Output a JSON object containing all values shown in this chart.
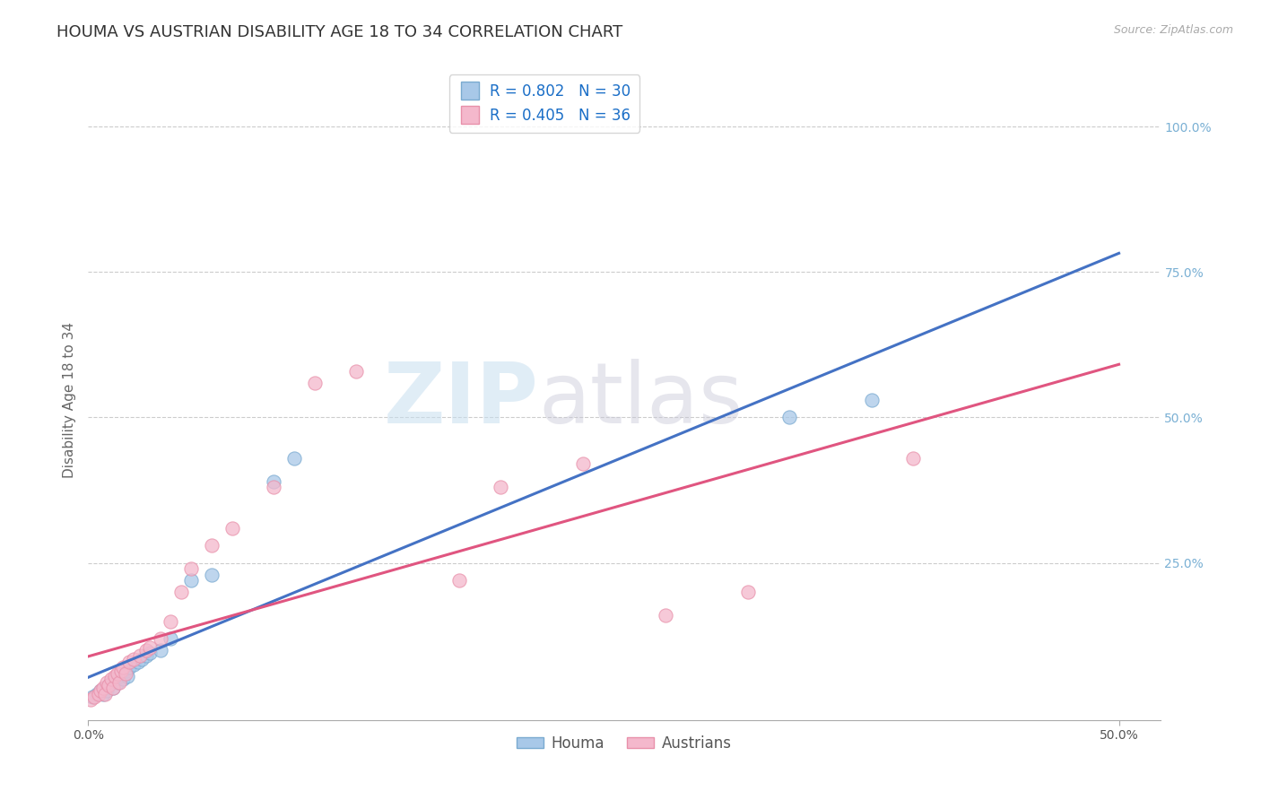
{
  "title": "HOUMA VS AUSTRIAN DISABILITY AGE 18 TO 34 CORRELATION CHART",
  "source": "Source: ZipAtlas.com",
  "ylabel": "Disability Age 18 to 34",
  "xlim": [
    0.0,
    0.52
  ],
  "ylim": [
    -0.02,
    1.08
  ],
  "houma_R": 0.802,
  "houma_N": 30,
  "austrians_R": 0.405,
  "austrians_N": 36,
  "houma_color": "#a8c8e8",
  "houma_edge_color": "#7aaad0",
  "houma_line_color": "#4472c4",
  "austrians_color": "#f4b8cc",
  "austrians_edge_color": "#e890aa",
  "austrians_line_color": "#e05580",
  "houma_scatter_x": [
    0.002,
    0.004,
    0.006,
    0.007,
    0.008,
    0.009,
    0.01,
    0.011,
    0.012,
    0.013,
    0.014,
    0.015,
    0.016,
    0.017,
    0.018,
    0.019,
    0.02,
    0.022,
    0.024,
    0.026,
    0.028,
    0.03,
    0.035,
    0.04,
    0.05,
    0.06,
    0.09,
    0.1,
    0.34,
    0.38
  ],
  "houma_scatter_y": [
    0.02,
    0.025,
    0.03,
    0.025,
    0.035,
    0.03,
    0.04,
    0.045,
    0.035,
    0.05,
    0.045,
    0.055,
    0.06,
    0.05,
    0.065,
    0.055,
    0.07,
    0.075,
    0.08,
    0.085,
    0.09,
    0.095,
    0.1,
    0.12,
    0.22,
    0.23,
    0.39,
    0.43,
    0.5,
    0.53
  ],
  "austrians_scatter_x": [
    0.001,
    0.003,
    0.005,
    0.006,
    0.007,
    0.008,
    0.009,
    0.01,
    0.011,
    0.012,
    0.013,
    0.014,
    0.015,
    0.016,
    0.017,
    0.018,
    0.02,
    0.022,
    0.025,
    0.028,
    0.03,
    0.035,
    0.04,
    0.045,
    0.05,
    0.06,
    0.07,
    0.09,
    0.11,
    0.13,
    0.18,
    0.2,
    0.24,
    0.28,
    0.32,
    0.4
  ],
  "austrians_scatter_y": [
    0.015,
    0.02,
    0.025,
    0.03,
    0.035,
    0.025,
    0.045,
    0.04,
    0.05,
    0.035,
    0.055,
    0.06,
    0.045,
    0.065,
    0.07,
    0.06,
    0.08,
    0.085,
    0.09,
    0.1,
    0.105,
    0.12,
    0.15,
    0.2,
    0.24,
    0.28,
    0.31,
    0.38,
    0.56,
    0.58,
    0.22,
    0.38,
    0.42,
    0.16,
    0.2,
    0.43
  ],
  "watermark_zip": "ZIP",
  "watermark_atlas": "atlas",
  "background_color": "#ffffff",
  "grid_color": "#cccccc",
  "title_fontsize": 13,
  "axis_label_fontsize": 11,
  "tick_fontsize": 10,
  "legend_fontsize": 12
}
